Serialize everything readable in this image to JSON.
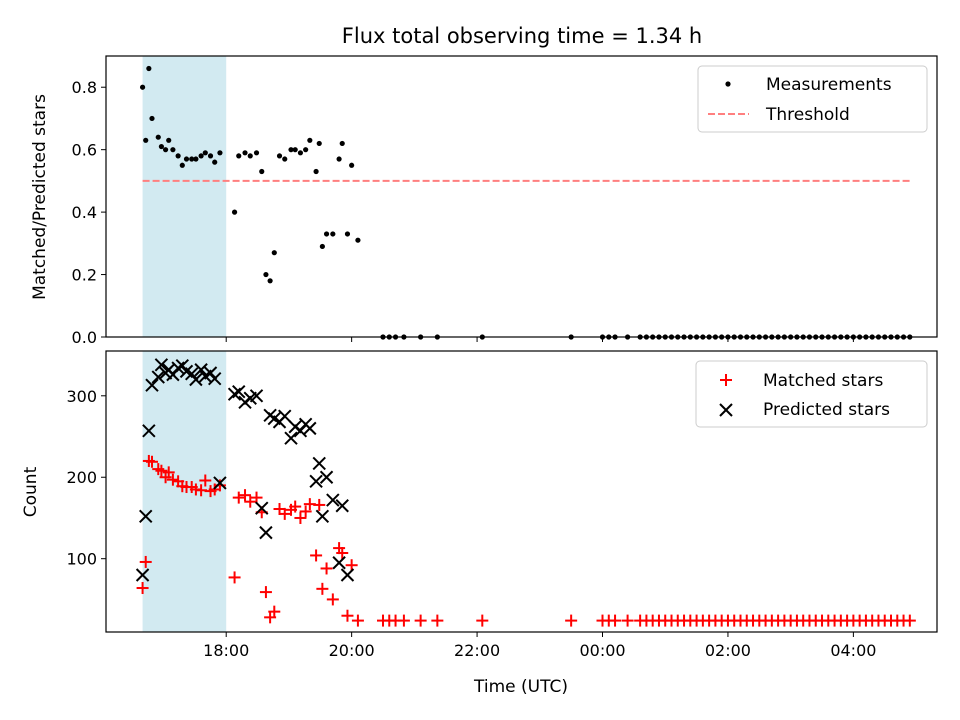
{
  "figure": {
    "title": "Flux total observing time = 1.34 h",
    "shared_xlabel": "Time (UTC)",
    "shared_xticks": [
      "18:00",
      "20:00",
      "22:00",
      "00:00",
      "02:00",
      "04:00"
    ],
    "highlight_span": {
      "x_start": "16:40",
      "x_end": "18:00",
      "color": "#add8e6"
    }
  },
  "chart_data": [
    {
      "type": "scatter",
      "title": "Flux total observing time = 1.34 h",
      "xlabel": "",
      "ylabel": "Matched/Predicted stars",
      "x_axis": "time (UTC), tick labels 18:00 to 04:00",
      "xlim": [
        "16:05",
        "05:20"
      ],
      "ylim": [
        0,
        0.9
      ],
      "yticks": [
        0.0,
        0.2,
        0.4,
        0.6,
        0.8
      ],
      "ytick_labels": [
        "0.0",
        "0.2",
        "0.4",
        "0.6",
        "0.8"
      ],
      "legend": {
        "placement": "top-right",
        "entries": [
          "Measurements",
          "Threshold"
        ]
      },
      "grid": false,
      "series": [
        {
          "name": "Measurements",
          "marker": "dot",
          "color": "#000000",
          "points": [
            [
              "16:40",
              0.8
            ],
            [
              "16:43",
              0.63
            ],
            [
              "16:46",
              0.86
            ],
            [
              "16:49",
              0.7
            ],
            [
              "16:55",
              0.64
            ],
            [
              "16:58",
              0.61
            ],
            [
              "17:02",
              0.6
            ],
            [
              "17:05",
              0.63
            ],
            [
              "17:09",
              0.6
            ],
            [
              "17:14",
              0.58
            ],
            [
              "17:18",
              0.55
            ],
            [
              "17:22",
              0.57
            ],
            [
              "17:27",
              0.57
            ],
            [
              "17:31",
              0.57
            ],
            [
              "17:36",
              0.58
            ],
            [
              "17:40",
              0.59
            ],
            [
              "17:45",
              0.58
            ],
            [
              "17:49",
              0.56
            ],
            [
              "17:54",
              0.59
            ],
            [
              "18:08",
              0.4
            ],
            [
              "18:12",
              0.58
            ],
            [
              "18:18",
              0.59
            ],
            [
              "18:23",
              0.58
            ],
            [
              "18:29",
              0.59
            ],
            [
              "18:34",
              0.53
            ],
            [
              "18:38",
              0.2
            ],
            [
              "18:42",
              0.18
            ],
            [
              "18:46",
              0.27
            ],
            [
              "18:51",
              0.58
            ],
            [
              "18:56",
              0.57
            ],
            [
              "19:02",
              0.6
            ],
            [
              "19:06",
              0.6
            ],
            [
              "19:11",
              0.59
            ],
            [
              "19:16",
              0.6
            ],
            [
              "19:20",
              0.63
            ],
            [
              "19:26",
              0.53
            ],
            [
              "19:29",
              0.62
            ],
            [
              "19:32",
              0.29
            ],
            [
              "19:36",
              0.33
            ],
            [
              "19:42",
              0.33
            ],
            [
              "19:48",
              0.57
            ],
            [
              "19:51",
              0.62
            ],
            [
              "19:56",
              0.33
            ],
            [
              "20:00",
              0.55
            ],
            [
              "20:06",
              0.31
            ],
            [
              "20:30",
              0.0
            ],
            [
              "20:36",
              0.0
            ],
            [
              "20:42",
              0.0
            ],
            [
              "20:50",
              0.0
            ],
            [
              "21:06",
              0.0
            ],
            [
              "21:22",
              0.0
            ],
            [
              "22:05",
              0.0
            ],
            [
              "23:30",
              0.0
            ],
            [
              "00:00",
              0.0
            ],
            [
              "00:06",
              0.0
            ],
            [
              "00:12",
              0.0
            ],
            [
              "00:24",
              0.0
            ],
            [
              "00:36",
              0.0
            ],
            [
              "00:42",
              0.0
            ],
            [
              "00:48",
              0.0
            ],
            [
              "00:54",
              0.0
            ],
            [
              "01:00",
              0.0
            ],
            [
              "01:06",
              0.0
            ],
            [
              "01:12",
              0.0
            ],
            [
              "01:18",
              0.0
            ],
            [
              "01:24",
              0.0
            ],
            [
              "01:30",
              0.0
            ],
            [
              "01:36",
              0.0
            ],
            [
              "01:42",
              0.0
            ],
            [
              "01:48",
              0.0
            ],
            [
              "01:54",
              0.0
            ],
            [
              "02:00",
              0.0
            ],
            [
              "02:06",
              0.0
            ],
            [
              "02:12",
              0.0
            ],
            [
              "02:18",
              0.0
            ],
            [
              "02:24",
              0.0
            ],
            [
              "02:30",
              0.0
            ],
            [
              "02:36",
              0.0
            ],
            [
              "02:42",
              0.0
            ],
            [
              "02:48",
              0.0
            ],
            [
              "02:54",
              0.0
            ],
            [
              "03:00",
              0.0
            ],
            [
              "03:06",
              0.0
            ],
            [
              "03:12",
              0.0
            ],
            [
              "03:18",
              0.0
            ],
            [
              "03:24",
              0.0
            ],
            [
              "03:30",
              0.0
            ],
            [
              "03:36",
              0.0
            ],
            [
              "03:42",
              0.0
            ],
            [
              "03:48",
              0.0
            ],
            [
              "03:54",
              0.0
            ],
            [
              "04:00",
              0.0
            ],
            [
              "04:06",
              0.0
            ],
            [
              "04:12",
              0.0
            ],
            [
              "04:18",
              0.0
            ],
            [
              "04:24",
              0.0
            ],
            [
              "04:30",
              0.0
            ],
            [
              "04:36",
              0.0
            ],
            [
              "04:42",
              0.0
            ],
            [
              "04:48",
              0.0
            ],
            [
              "04:54",
              0.0
            ]
          ]
        },
        {
          "name": "Threshold",
          "style": "dashed-line",
          "color": "#ff7f7f",
          "points": [
            [
              "16:40",
              0.5
            ],
            [
              "04:54",
              0.5
            ]
          ]
        }
      ]
    },
    {
      "type": "scatter",
      "title": "",
      "xlabel": "Time (UTC)",
      "ylabel": "Count",
      "x_axis": "time (UTC), tick labels 18:00 to 04:00",
      "xlim": [
        "16:05",
        "05:20"
      ],
      "ylim": [
        10,
        355
      ],
      "yticks": [
        100,
        200,
        300
      ],
      "ytick_labels": [
        "100",
        "200",
        "300"
      ],
      "legend": {
        "placement": "top-right",
        "entries": [
          "Matched stars",
          "Predicted stars"
        ]
      },
      "grid": false,
      "series": [
        {
          "name": "Matched stars",
          "marker": "plus",
          "color": "#ff0000",
          "points": [
            [
              "16:40",
              64
            ],
            [
              "16:43",
              96
            ],
            [
              "16:46",
              220
            ],
            [
              "16:49",
              219
            ],
            [
              "16:55",
              210
            ],
            [
              "16:58",
              208
            ],
            [
              "17:02",
              200
            ],
            [
              "17:05",
              206
            ],
            [
              "17:09",
              197
            ],
            [
              "17:14",
              195
            ],
            [
              "17:18",
              189
            ],
            [
              "17:22",
              188
            ],
            [
              "17:27",
              188
            ],
            [
              "17:31",
              185
            ],
            [
              "17:36",
              184
            ],
            [
              "17:40",
              196
            ],
            [
              "17:45",
              183
            ],
            [
              "17:49",
              185
            ],
            [
              "17:54",
              190
            ],
            [
              "18:08",
              77
            ],
            [
              "18:12",
              175
            ],
            [
              "18:18",
              178
            ],
            [
              "18:23",
              170
            ],
            [
              "18:29",
              175
            ],
            [
              "18:34",
              157
            ],
            [
              "18:38",
              59
            ],
            [
              "18:42",
              28
            ],
            [
              "18:46",
              35
            ],
            [
              "18:51",
              161
            ],
            [
              "18:56",
              155
            ],
            [
              "19:02",
              160
            ],
            [
              "19:06",
              164
            ],
            [
              "19:11",
              150
            ],
            [
              "19:16",
              158
            ],
            [
              "19:20",
              167
            ],
            [
              "19:26",
              104
            ],
            [
              "19:29",
              166
            ],
            [
              "19:32",
              63
            ],
            [
              "19:36",
              88
            ],
            [
              "19:42",
              50
            ],
            [
              "19:48",
              113
            ],
            [
              "19:51",
              107
            ],
            [
              "19:56",
              30
            ],
            [
              "20:00",
              92
            ],
            [
              "20:06",
              24
            ],
            [
              "20:30",
              24
            ],
            [
              "20:36",
              24
            ],
            [
              "20:42",
              24
            ],
            [
              "20:50",
              24
            ],
            [
              "21:06",
              24
            ],
            [
              "21:22",
              24
            ],
            [
              "22:05",
              24
            ],
            [
              "23:30",
              24
            ],
            [
              "00:00",
              24
            ],
            [
              "00:06",
              24
            ],
            [
              "00:12",
              24
            ],
            [
              "00:24",
              24
            ],
            [
              "00:36",
              24
            ],
            [
              "00:42",
              24
            ],
            [
              "00:48",
              24
            ],
            [
              "00:54",
              24
            ],
            [
              "01:00",
              24
            ],
            [
              "01:06",
              24
            ],
            [
              "01:12",
              24
            ],
            [
              "01:18",
              24
            ],
            [
              "01:24",
              24
            ],
            [
              "01:30",
              24
            ],
            [
              "01:36",
              24
            ],
            [
              "01:42",
              24
            ],
            [
              "01:48",
              24
            ],
            [
              "01:54",
              24
            ],
            [
              "02:00",
              24
            ],
            [
              "02:06",
              24
            ],
            [
              "02:12",
              24
            ],
            [
              "02:18",
              24
            ],
            [
              "02:24",
              24
            ],
            [
              "02:30",
              24
            ],
            [
              "02:36",
              24
            ],
            [
              "02:42",
              24
            ],
            [
              "02:48",
              24
            ],
            [
              "02:54",
              24
            ],
            [
              "03:00",
              24
            ],
            [
              "03:06",
              24
            ],
            [
              "03:12",
              24
            ],
            [
              "03:18",
              24
            ],
            [
              "03:24",
              24
            ],
            [
              "03:30",
              24
            ],
            [
              "03:36",
              24
            ],
            [
              "03:42",
              24
            ],
            [
              "03:48",
              24
            ],
            [
              "03:54",
              24
            ],
            [
              "04:00",
              24
            ],
            [
              "04:06",
              24
            ],
            [
              "04:12",
              24
            ],
            [
              "04:18",
              24
            ],
            [
              "04:24",
              24
            ],
            [
              "04:30",
              24
            ],
            [
              "04:36",
              24
            ],
            [
              "04:42",
              24
            ],
            [
              "04:48",
              24
            ],
            [
              "04:54",
              24
            ]
          ]
        },
        {
          "name": "Predicted stars",
          "marker": "x",
          "color": "#000000",
          "points": [
            [
              "16:40",
              80
            ],
            [
              "16:43",
              152
            ],
            [
              "16:46",
              257
            ],
            [
              "16:49",
              313
            ],
            [
              "16:55",
              323
            ],
            [
              "16:58",
              338
            ],
            [
              "17:02",
              328
            ],
            [
              "17:05",
              332
            ],
            [
              "17:09",
              326
            ],
            [
              "17:14",
              334
            ],
            [
              "17:18",
              337
            ],
            [
              "17:22",
              330
            ],
            [
              "17:27",
              327
            ],
            [
              "17:31",
              320
            ],
            [
              "17:36",
              332
            ],
            [
              "17:40",
              324
            ],
            [
              "17:45",
              328
            ],
            [
              "17:49",
              321
            ],
            [
              "17:54",
              193
            ],
            [
              "18:08",
              302
            ],
            [
              "18:12",
              305
            ],
            [
              "18:18",
              292
            ],
            [
              "18:23",
              297
            ],
            [
              "18:29",
              300
            ],
            [
              "18:34",
              162
            ],
            [
              "18:38",
              132
            ],
            [
              "18:42",
              276
            ],
            [
              "18:46",
              272
            ],
            [
              "18:51",
              268
            ],
            [
              "18:56",
              275
            ],
            [
              "19:02",
              248
            ],
            [
              "19:06",
              262
            ],
            [
              "19:11",
              257
            ],
            [
              "19:16",
              265
            ],
            [
              "19:20",
              260
            ],
            [
              "19:26",
              195
            ],
            [
              "19:29",
              217
            ],
            [
              "19:32",
              152
            ],
            [
              "19:36",
              200
            ],
            [
              "19:42",
              172
            ],
            [
              "19:48",
              95
            ],
            [
              "19:51",
              165
            ],
            [
              "19:56",
              80
            ]
          ]
        }
      ]
    }
  ]
}
